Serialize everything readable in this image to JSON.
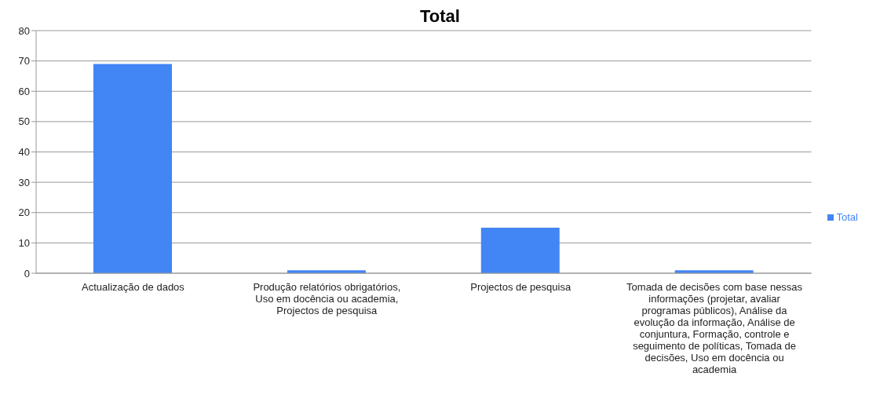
{
  "chart_data": {
    "type": "bar",
    "title": "Total",
    "categories": [
      "Actualização de dados",
      "Produção relatórios obrigatórios, Uso em docência ou academia, Projectos de pesquisa",
      "Projectos de pesquisa",
      "Tomada de decisões com base nessas informações (projetar, avaliar programas públicos), Análise da evolução da informação, Análise de conjuntura, Formação, controle e seguimento de políticas, Tomada de decisões, Uso em docência ou academia"
    ],
    "series": [
      {
        "name": "Total",
        "color": "#4285f4",
        "values": [
          69,
          1,
          15,
          1
        ]
      }
    ],
    "ylim": [
      0,
      80
    ],
    "yticks": [
      0,
      10,
      20,
      30,
      40,
      50,
      60,
      70,
      80
    ],
    "grid": "y",
    "legend": "right"
  }
}
